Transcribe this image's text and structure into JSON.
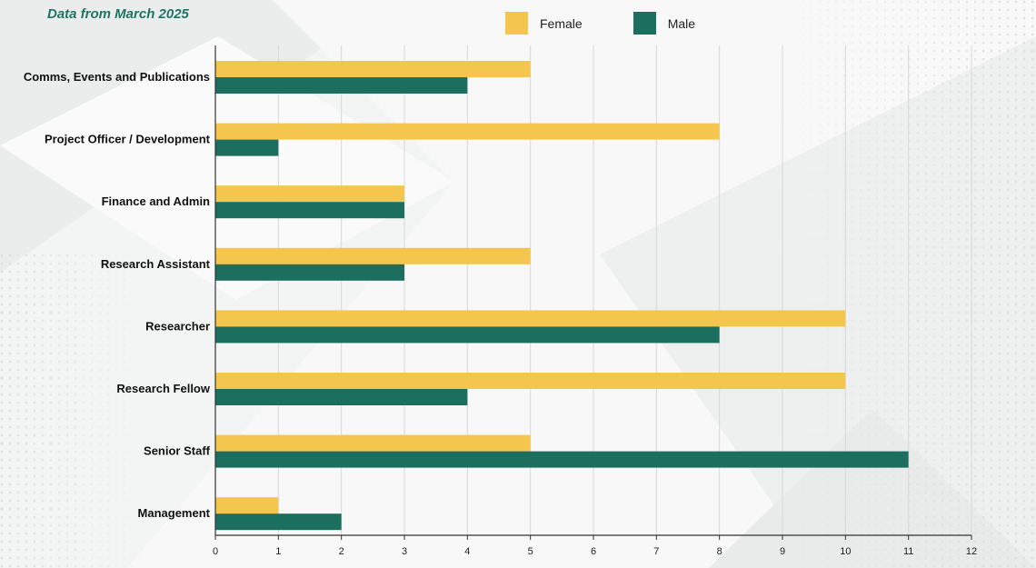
{
  "subtitle": "Data from March 2025",
  "colors": {
    "female": "#f5c64e",
    "male": "#1c6e5e",
    "grid": "#d7d9d9",
    "axis": "#333333"
  },
  "chart_data": {
    "type": "bar",
    "orientation": "horizontal",
    "title": "",
    "xlabel": "",
    "ylabel": "",
    "categories": [
      "Comms, Events and Publications",
      "Project Officer / Development",
      "Finance and Admin",
      "Research Assistant",
      "Researcher",
      "Research Fellow",
      "Senior Staff",
      "Management"
    ],
    "series": [
      {
        "name": "Female",
        "values": [
          5,
          8,
          3,
          5,
          10,
          10,
          5,
          1
        ]
      },
      {
        "name": "Male",
        "values": [
          4,
          1,
          3,
          3,
          8,
          4,
          11,
          2
        ]
      }
    ],
    "xlim": [
      0,
      12
    ],
    "xticks": [
      0,
      1,
      2,
      3,
      4,
      5,
      6,
      7,
      8,
      9,
      10,
      11,
      12
    ],
    "grid": "vertical",
    "legend": "top"
  }
}
